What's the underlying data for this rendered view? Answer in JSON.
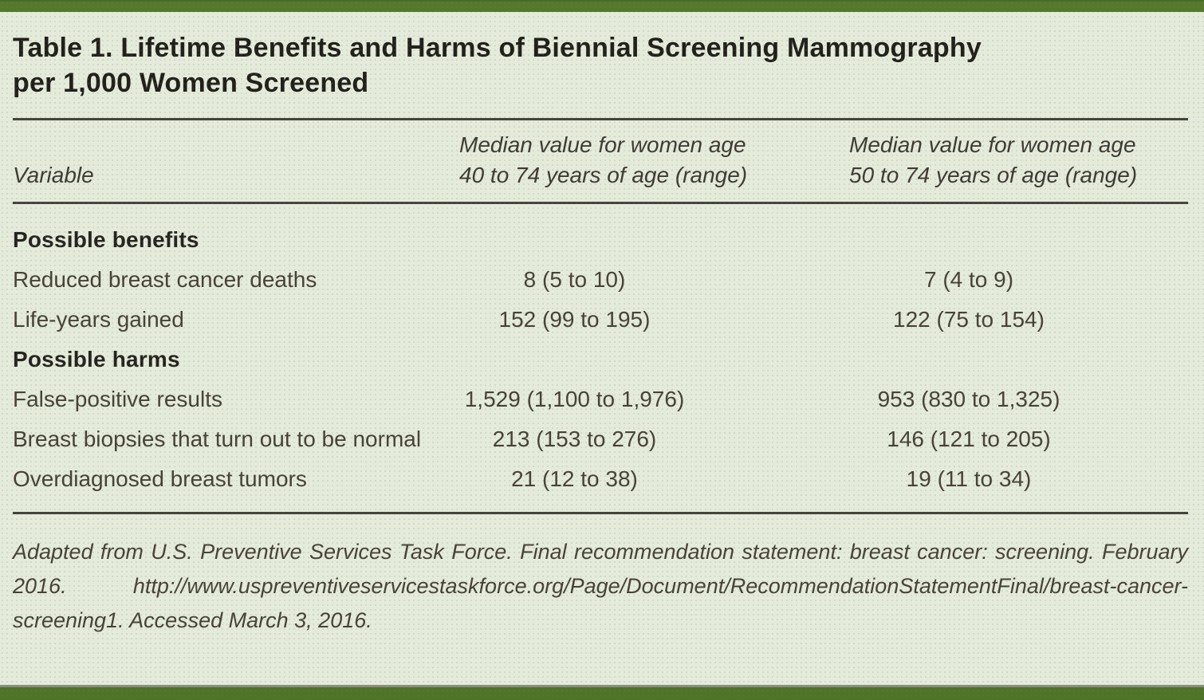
{
  "colors": {
    "accent_green_bar": "#55792c",
    "bottom_green_bar": "#4e7527",
    "bottom_gray_line": "#8d8d86",
    "page_background": "#e5ebda",
    "rule_color": "#45433d",
    "title_text": "#21201b",
    "body_text": "#474138"
  },
  "table": {
    "title": "Table 1. Lifetime Benefits and Harms of Biennial Screening Mammography per 1,000 Women Screened",
    "title_lines": [
      "Table 1. Lifetime Benefits and Harms of Biennial Screening Mammography",
      "per 1,000 Women Screened"
    ],
    "columns": [
      {
        "lines": [
          "Variable"
        ]
      },
      {
        "lines": [
          "Median value for women age",
          "40 to 74 years of age (range)"
        ]
      },
      {
        "lines": [
          "Median value for women age",
          "50 to 74 years of age (range)"
        ]
      }
    ],
    "sections": [
      {
        "header": "Possible benefits",
        "rows": [
          {
            "variable": "Reduced breast cancer deaths",
            "age_40_74": "8 (5 to 10)",
            "age_50_74": "7 (4 to 9)"
          },
          {
            "variable": "Life-years gained",
            "age_40_74": "152 (99 to 195)",
            "age_50_74": "122 (75 to 154)"
          }
        ]
      },
      {
        "header": "Possible harms",
        "rows": [
          {
            "variable": "False-positive results",
            "age_40_74": "1,529 (1,100 to 1,976)",
            "age_50_74": "953 (830 to 1,325)"
          },
          {
            "variable": "Breast biopsies that turn out to be normal",
            "age_40_74": "213 (153 to 276)",
            "age_50_74": "146 (121 to 205)"
          },
          {
            "variable": "Overdiagnosed breast tumors",
            "age_40_74": "21 (12 to 38)",
            "age_50_74": "19 (11 to 34)"
          }
        ]
      }
    ],
    "footnote": "Adapted from U.S. Preventive Services Task Force. Final recommendation statement: breast cancer: screening. February 2016. http://www.uspreventiveservicestaskforce.org/Page/Document/RecommendationStatementFinal/breast-cancer-screening1. Accessed March 3, 2016."
  },
  "chart_data": {
    "type": "table",
    "title": "Table 1. Lifetime Benefits and Harms of Biennial Screening Mammography per 1,000 Women Screened",
    "columns": [
      "Variable",
      "Median value for women age 40 to 74 years of age (range)",
      "Median value for women age 50 to 74 years of age (range)"
    ],
    "rows": [
      [
        "Possible benefits",
        "",
        ""
      ],
      [
        "Reduced breast cancer deaths",
        "8 (5 to 10)",
        "7 (4 to 9)"
      ],
      [
        "Life-years gained",
        "152 (99 to 195)",
        "122 (75 to 154)"
      ],
      [
        "Possible harms",
        "",
        ""
      ],
      [
        "False-positive results",
        "1,529 (1,100 to 1,976)",
        "953 (830 to 1,325)"
      ],
      [
        "Breast biopsies that turn out to be normal",
        "213 (153 to 276)",
        "146 (121 to 205)"
      ],
      [
        "Overdiagnosed breast tumors",
        "21 (12 to 38)",
        "19 (11 to 34)"
      ]
    ]
  }
}
